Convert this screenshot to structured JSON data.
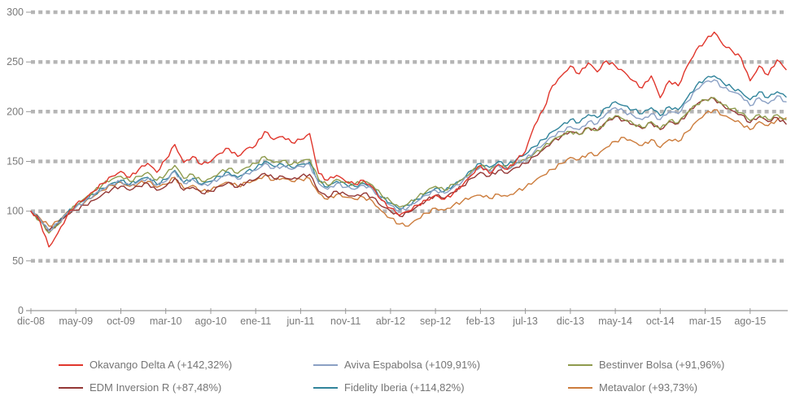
{
  "chart_data": {
    "type": "line",
    "title": "",
    "xlabel": "",
    "ylabel": "",
    "ylim": [
      0,
      300
    ],
    "y_ticks": [
      0,
      50,
      100,
      150,
      200,
      250,
      300
    ],
    "x_tick_labels": [
      "dic-08",
      "may-09",
      "oct-09",
      "mar-10",
      "ago-10",
      "ene-11",
      "jun-11",
      "nov-11",
      "abr-12",
      "sep-12",
      "feb-13",
      "jul-13",
      "dic-13",
      "may-14",
      "oct-14",
      "mar-15",
      "ago-15"
    ],
    "x_tick_every": 5,
    "x_resolution": "monthly",
    "grid": "horizontal-dashed",
    "legend_position": "bottom",
    "gridline_color": "#b5b5b5",
    "axis_color": "#999999",
    "axis_text_color": "#7a7a7a",
    "series": [
      {
        "name": "Okavango Delta A (+142,32%)",
        "color": "#e0362c",
        "values": [
          100,
          90,
          64,
          78,
          95,
          107,
          112,
          120,
          128,
          135,
          140,
          134,
          142,
          148,
          139,
          152,
          167,
          149,
          155,
          147,
          150,
          158,
          163,
          155,
          163,
          166,
          180,
          172,
          175,
          169,
          172,
          178,
          138,
          131,
          136,
          130,
          127,
          131,
          124,
          111,
          103,
          96,
          100,
          106,
          111,
          116,
          112,
          118,
          126,
          136,
          146,
          138,
          147,
          142,
          151,
          160,
          186,
          202,
          226,
          236,
          246,
          238,
          249,
          240,
          251,
          246,
          240,
          231,
          224,
          236,
          214,
          231,
          226,
          246,
          262,
          271,
          280,
          267,
          261,
          254,
          231,
          246,
          237,
          252,
          242.3
        ]
      },
      {
        "name": "Aviva Espabolsa (+109,91%)",
        "color": "#8aa0c4",
        "values": [
          100,
          92,
          80,
          88,
          98,
          104,
          110,
          116,
          122,
          127,
          130,
          126,
          130,
          133,
          126,
          130,
          140,
          128,
          132,
          126,
          128,
          133,
          137,
          132,
          138,
          141,
          148,
          143,
          145,
          142,
          145,
          147,
          128,
          122,
          128,
          124,
          122,
          126,
          122,
          112,
          106,
          100,
          104,
          110,
          116,
          121,
          118,
          124,
          130,
          138,
          144,
          140,
          146,
          142,
          148,
          152,
          160,
          167,
          175,
          180,
          185,
          182,
          190,
          188,
          198,
          204,
          200,
          196,
          192,
          198,
          192,
          200,
          198,
          210,
          222,
          230,
          232,
          224,
          220,
          216,
          206,
          214,
          208,
          216,
          209.9
        ]
      },
      {
        "name": "Bestinver Bolsa (+91,96%)",
        "color": "#8e9b4d",
        "values": [
          100,
          90,
          78,
          86,
          98,
          106,
          113,
          120,
          127,
          132,
          135,
          130,
          135,
          139,
          131,
          137,
          146,
          133,
          137,
          130,
          133,
          139,
          143,
          138,
          144,
          148,
          155,
          149,
          151,
          147,
          150,
          152,
          132,
          126,
          132,
          129,
          127,
          130,
          126,
          116,
          110,
          104,
          108,
          114,
          120,
          125,
          121,
          127,
          132,
          140,
          146,
          141,
          147,
          143,
          149,
          152,
          158,
          164,
          171,
          176,
          180,
          177,
          184,
          181,
          190,
          196,
          192,
          188,
          184,
          190,
          183,
          191,
          189,
          199,
          207,
          212,
          214,
          207,
          203,
          199,
          191,
          197,
          192,
          197,
          192
        ]
      },
      {
        "name": "EDM Inversion R (+87,48%)",
        "color": "#943735",
        "values": [
          100,
          91,
          80,
          87,
          96,
          101,
          106,
          111,
          117,
          122,
          125,
          121,
          125,
          128,
          121,
          125,
          133,
          121,
          124,
          118,
          120,
          125,
          129,
          124,
          129,
          132,
          138,
          133,
          135,
          132,
          135,
          137,
          120,
          114,
          120,
          117,
          115,
          118,
          114,
          105,
          100,
          95,
          99,
          105,
          111,
          116,
          113,
          119,
          125,
          133,
          139,
          135,
          141,
          138,
          144,
          148,
          155,
          162,
          170,
          175,
          180,
          177,
          184,
          181,
          190,
          195,
          191,
          187,
          183,
          189,
          182,
          190,
          188,
          198,
          207,
          212,
          213,
          206,
          201,
          197,
          189,
          195,
          190,
          194,
          187.5
        ]
      },
      {
        "name": "Fidelity Iberia (+114,82%)",
        "color": "#31849b",
        "values": [
          100,
          92,
          81,
          88,
          98,
          105,
          111,
          117,
          123,
          128,
          131,
          127,
          131,
          134,
          127,
          132,
          141,
          129,
          133,
          127,
          130,
          135,
          139,
          134,
          140,
          143,
          150,
          145,
          147,
          144,
          147,
          149,
          130,
          124,
          130,
          127,
          125,
          128,
          124,
          114,
          108,
          102,
          106,
          112,
          118,
          123,
          120,
          126,
          132,
          141,
          148,
          144,
          150,
          146,
          152,
          157,
          165,
          172,
          180,
          186,
          192,
          189,
          197,
          194,
          204,
          210,
          206,
          202,
          198,
          204,
          196,
          205,
          202,
          214,
          226,
          233,
          236,
          229,
          224,
          220,
          212,
          220,
          214,
          220,
          214.8
        ]
      },
      {
        "name": "Metavalor (+93,73%)",
        "color": "#cc7c3c",
        "values": [
          100,
          93,
          85,
          90,
          99,
          104,
          109,
          115,
          121,
          126,
          129,
          125,
          128,
          130,
          124,
          127,
          134,
          123,
          126,
          120,
          121,
          126,
          129,
          125,
          129,
          131,
          136,
          131,
          133,
          130,
          132,
          133,
          118,
          112,
          117,
          114,
          112,
          114,
          110,
          100,
          93,
          87,
          85,
          92,
          98,
          103,
          101,
          106,
          110,
          114,
          116,
          113,
          117,
          115,
          120,
          124,
          130,
          136,
          142,
          148,
          154,
          152,
          158,
          156,
          164,
          170,
          174,
          170,
          166,
          172,
          164,
          172,
          170,
          180,
          190,
          198,
          202,
          196,
          192,
          188,
          182,
          190,
          186,
          192,
          193.7
        ]
      }
    ]
  }
}
